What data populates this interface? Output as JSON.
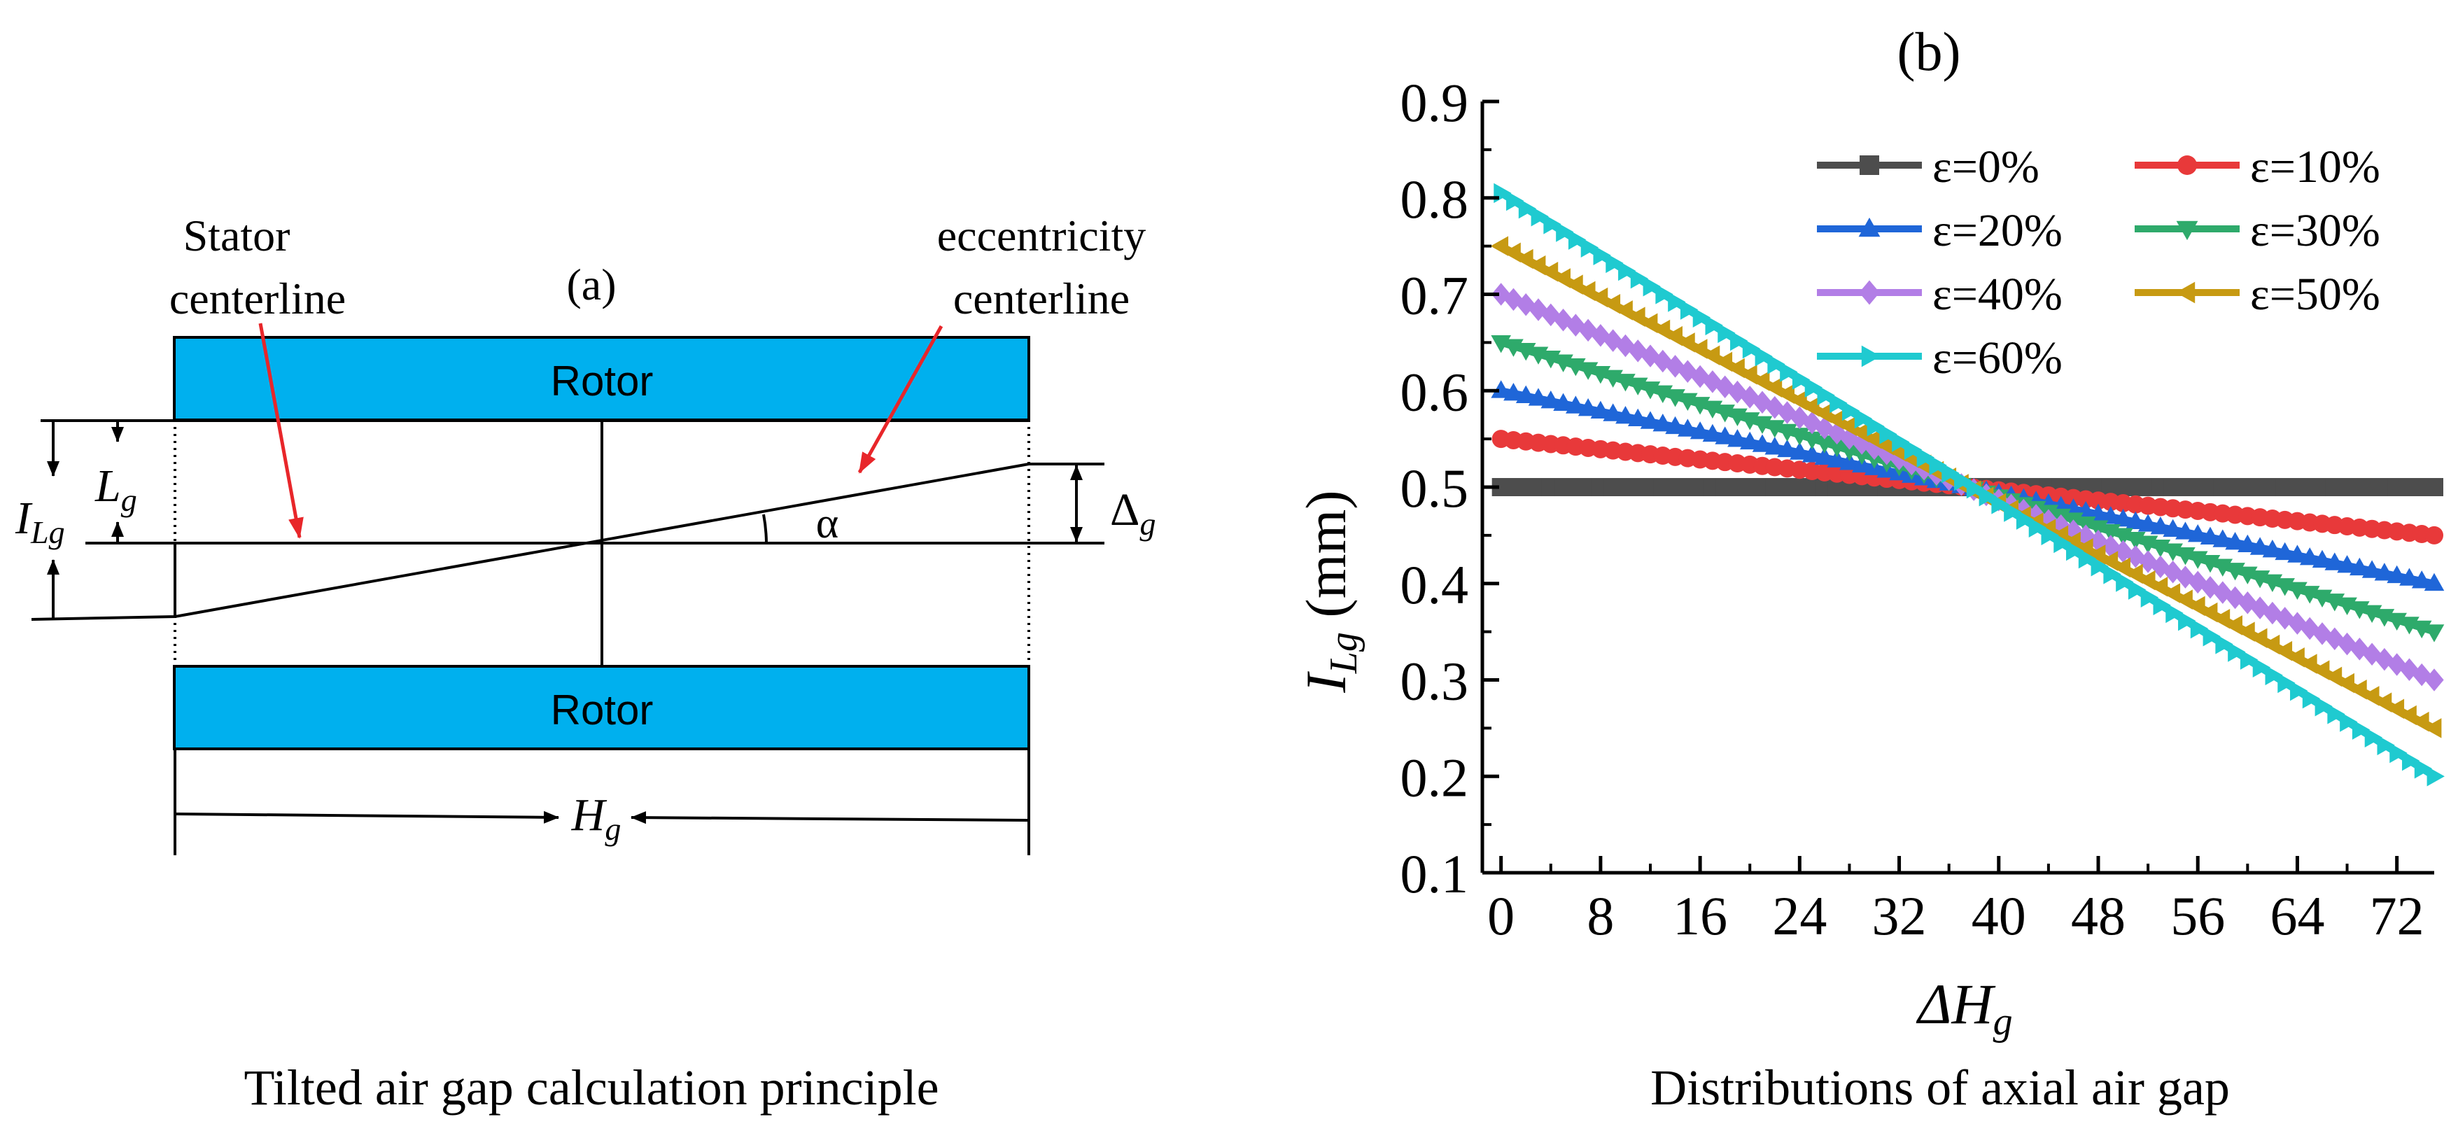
{
  "colors": {
    "rotor_fill": "#00b0ee",
    "ink": "#000000",
    "arrow_red": "#e8262a"
  },
  "diagram": {
    "panel_label": "(a)",
    "stator_label_line1": "Stator",
    "stator_label_line2": "centerline",
    "ecc_label_line1": "eccentricity",
    "ecc_label_line2": "centerline",
    "rotor_top": "Rotor",
    "rotor_bottom": "Rotor",
    "I_main": "I",
    "I_sub": "Lg",
    "L_main": "L",
    "L_sub": "g",
    "delta_main": "Δ",
    "delta_sub": "g",
    "alpha": "α",
    "H_main": "H",
    "H_sub": "g",
    "caption": "Tilted air gap calculation principle"
  },
  "chart_caption": "Distributions of axial air gap",
  "chart_data": {
    "type": "line",
    "title": "(b)",
    "xlabel_main": "ΔH",
    "xlabel_sub": "g",
    "ylabel_main": "I",
    "ylabel_sub": "Lg",
    "ylabel_unit": " (mm)",
    "xlim": [
      -1.5,
      75
    ],
    "ylim": [
      0.1,
      0.9
    ],
    "xticks": [
      0,
      8,
      16,
      24,
      32,
      40,
      48,
      56,
      64,
      72
    ],
    "yticks": [
      0.1,
      0.2,
      0.3,
      0.4,
      0.5,
      0.6,
      0.7,
      0.8,
      0.9
    ],
    "ytick_labels": [
      "0.1",
      "0.2",
      "0.3",
      "0.4",
      "0.5",
      "0.6",
      "0.7",
      "0.8",
      "0.9"
    ],
    "x": [
      0,
      75
    ],
    "series": [
      {
        "name": "ε=0%",
        "values": [
          0.5,
          0.5
        ],
        "color": "#4d4d4d",
        "marker": "square"
      },
      {
        "name": "ε=10%",
        "values": [
          0.55,
          0.45
        ],
        "color": "#e8393a",
        "marker": "circle"
      },
      {
        "name": "ε=20%",
        "values": [
          0.6,
          0.4
        ],
        "color": "#1f66d8",
        "marker": "triangle-up"
      },
      {
        "name": "ε=30%",
        "values": [
          0.65,
          0.35
        ],
        "color": "#2eaa6b",
        "marker": "triangle-down"
      },
      {
        "name": "ε=40%",
        "values": [
          0.7,
          0.3
        ],
        "color": "#b27ee6",
        "marker": "diamond"
      },
      {
        "name": "ε=50%",
        "values": [
          0.75,
          0.25
        ],
        "color": "#c79a12",
        "marker": "triangle-left"
      },
      {
        "name": "ε=60%",
        "values": [
          0.805,
          0.2
        ],
        "color": "#1fcad0",
        "marker": "triangle-right"
      }
    ]
  }
}
